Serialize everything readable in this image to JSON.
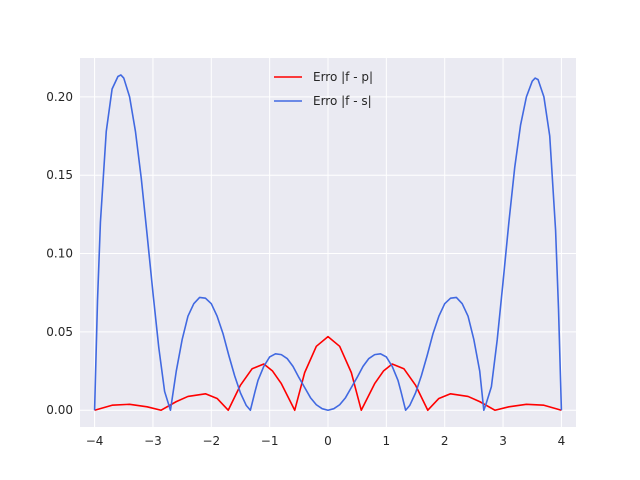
{
  "chart_data": {
    "type": "line",
    "title": "",
    "xlabel": "",
    "ylabel": "",
    "xlim": [
      -4.25,
      4.25
    ],
    "ylim": [
      -0.0107,
      0.2248
    ],
    "x_ticks": [
      -4,
      -3,
      -2,
      -1,
      0,
      1,
      2,
      3,
      4
    ],
    "x_tick_labels": [
      "−4",
      "−3",
      "−2",
      "−1",
      "0",
      "1",
      "2",
      "3",
      "4"
    ],
    "y_ticks": [
      0.0,
      0.05,
      0.1,
      0.15,
      0.2
    ],
    "y_tick_labels": [
      "0.00",
      "0.05",
      "0.10",
      "0.15",
      "0.20"
    ],
    "grid": true,
    "legend_position": "top-center",
    "series": [
      {
        "name": "Erro |f - p|",
        "color": "#ff0000",
        "x": [
          -4.0,
          -3.7,
          -3.4,
          -3.1,
          -2.86,
          -2.6,
          -2.4,
          -2.1,
          -1.9,
          -1.71,
          -1.5,
          -1.3,
          -1.1,
          -0.95,
          -0.8,
          -0.57,
          -0.4,
          -0.2,
          0.0,
          0.2,
          0.4,
          0.57,
          0.8,
          0.95,
          1.1,
          1.3,
          1.5,
          1.71,
          1.9,
          2.1,
          2.4,
          2.6,
          2.86,
          3.1,
          3.4,
          3.7,
          4.0
        ],
        "y": [
          0.0,
          0.0032,
          0.0038,
          0.0022,
          0.0,
          0.0055,
          0.0088,
          0.0105,
          0.0075,
          0.0,
          0.016,
          0.0265,
          0.0295,
          0.025,
          0.017,
          0.0,
          0.024,
          0.0408,
          0.047,
          0.0408,
          0.024,
          0.0,
          0.017,
          0.025,
          0.0295,
          0.0265,
          0.016,
          0.0,
          0.0075,
          0.0105,
          0.0088,
          0.0055,
          0.0,
          0.0022,
          0.0038,
          0.0032,
          0.0
        ]
      },
      {
        "name": "Erro |f - s|",
        "color": "#4169e1",
        "x": [
          -4.0,
          -3.95,
          -3.9,
          -3.8,
          -3.7,
          -3.6,
          -3.55,
          -3.5,
          -3.4,
          -3.3,
          -3.2,
          -3.1,
          -3.0,
          -2.9,
          -2.8,
          -2.7,
          -2.6,
          -2.5,
          -2.4,
          -2.3,
          -2.2,
          -2.1,
          -2.0,
          -1.9,
          -1.8,
          -1.7,
          -1.6,
          -1.5,
          -1.4,
          -1.33,
          -1.25,
          -1.2,
          -1.1,
          -1.0,
          -0.9,
          -0.8,
          -0.7,
          -0.6,
          -0.5,
          -0.4,
          -0.3,
          -0.2,
          -0.1,
          0.0,
          0.1,
          0.2,
          0.3,
          0.4,
          0.5,
          0.6,
          0.7,
          0.8,
          0.9,
          1.0,
          1.1,
          1.2,
          1.25,
          1.33,
          1.4,
          1.5,
          1.6,
          1.7,
          1.8,
          1.9,
          2.0,
          2.1,
          2.2,
          2.3,
          2.4,
          2.5,
          2.6,
          2.67,
          2.7,
          2.8,
          2.9,
          3.0,
          3.1,
          3.2,
          3.3,
          3.4,
          3.5,
          3.55,
          3.6,
          3.7,
          3.8,
          3.9,
          3.95,
          4.0
        ],
        "y": [
          0.0,
          0.07,
          0.12,
          0.178,
          0.205,
          0.213,
          0.214,
          0.212,
          0.2,
          0.178,
          0.148,
          0.112,
          0.075,
          0.04,
          0.012,
          0.0,
          0.025,
          0.045,
          0.06,
          0.068,
          0.072,
          0.0715,
          0.068,
          0.06,
          0.049,
          0.035,
          0.022,
          0.011,
          0.003,
          0.0,
          0.012,
          0.019,
          0.028,
          0.034,
          0.036,
          0.0355,
          0.033,
          0.028,
          0.021,
          0.0145,
          0.008,
          0.0035,
          0.001,
          0.0,
          0.001,
          0.0035,
          0.008,
          0.0145,
          0.021,
          0.028,
          0.033,
          0.0355,
          0.036,
          0.034,
          0.028,
          0.019,
          0.012,
          0.0,
          0.003,
          0.011,
          0.022,
          0.035,
          0.049,
          0.06,
          0.068,
          0.0715,
          0.072,
          0.068,
          0.06,
          0.045,
          0.025,
          0.0,
          0.003,
          0.015,
          0.045,
          0.082,
          0.12,
          0.155,
          0.182,
          0.2,
          0.21,
          0.212,
          0.211,
          0.2,
          0.175,
          0.115,
          0.065,
          0.0
        ]
      }
    ]
  },
  "colors": {
    "plot_background": "#eaeaf2",
    "grid": "#ffffff",
    "text": "#262626"
  }
}
